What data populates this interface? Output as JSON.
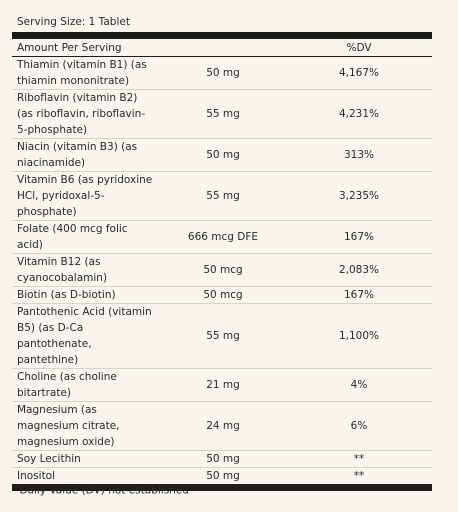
{
  "serving_size": "Serving Size: 1 Tablet",
  "table": {
    "header": [
      "Amount Per Serving",
      "%DV"
    ],
    "rows": [
      [
        "Thiamin (vitamin B1) (as thiamin mononitrate)",
        "50 mg",
        "4,167%"
      ],
      [
        "Riboflavin (vitamin B2) (as riboflavin, riboflavin-5-phosphate)",
        "55 mg",
        "4,231%"
      ],
      [
        "Niacin (vitamin B3) (as niacinamide)",
        "50 mg",
        "313%"
      ],
      [
        "Vitamin B6 (as pyridoxine HCl, pyridoxal-5-phosphate)",
        "55 mg",
        "3,235%"
      ],
      [
        "Folate (400 mcg folic acid)",
        "666 mcg DFE",
        "167%"
      ],
      [
        "Vitamin B12 (as cyanocobalamin)",
        "50 mcg",
        "2,083%"
      ],
      [
        "Biotin (as D-biotin)",
        "50 mcg",
        "167%"
      ],
      [
        "Pantothenic Acid (vitamin B5) (as D-Ca pantothenate, pantethine)",
        "55 mg",
        "1,100%"
      ],
      [
        "Choline (as choline bitartrate)",
        "21 mg",
        "4%"
      ],
      [
        "Magnesium (as magnesium citrate, magnesium oxide)",
        "24 mg",
        "6%"
      ],
      [
        "Soy Lecithin",
        "50 mg",
        "**"
      ],
      [
        "Inositol",
        "50 mg",
        "**"
      ]
    ]
  },
  "footnote": {
    "mark": "*",
    "text": "Daily Value (DV) not established"
  }
}
